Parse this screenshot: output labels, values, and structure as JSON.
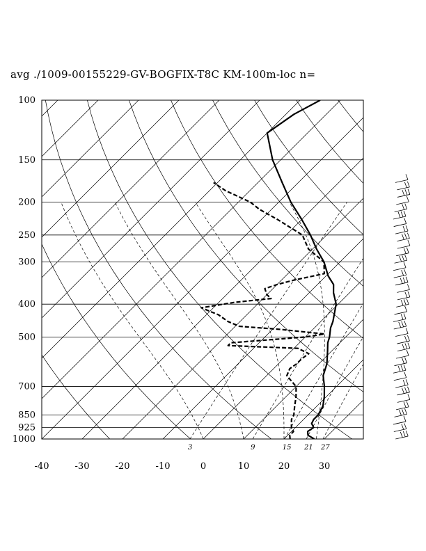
{
  "title": "avg ./1009-00155229-GV-BOGFIX-T8C KM-100m-loc n=",
  "chart_data": {
    "type": "line",
    "chart_kind": "skew-T log-p diagram",
    "y_axis": {
      "scale": "log",
      "reversed": true,
      "range": [
        100,
        1000
      ],
      "ticks": [
        100,
        150,
        200,
        250,
        300,
        400,
        500,
        700,
        850,
        925,
        1000
      ]
    },
    "x_axis": {
      "range": [
        -40,
        40
      ],
      "ticks": [
        -40,
        -30,
        -20,
        -10,
        0,
        10,
        20,
        30
      ]
    },
    "grid": true,
    "mixing_ratio_labels": [
      "3",
      "9",
      "15",
      "21",
      "27"
    ],
    "series": [
      {
        "style": "solid",
        "points": [
          [
            1000,
            27.5
          ],
          [
            975,
            25
          ],
          [
            950,
            24
          ],
          [
            925,
            24.5
          ],
          [
            900,
            23
          ],
          [
            875,
            22.5
          ],
          [
            850,
            22.5
          ],
          [
            800,
            21.5
          ],
          [
            750,
            19.5
          ],
          [
            700,
            17
          ],
          [
            650,
            14
          ],
          [
            600,
            12
          ],
          [
            550,
            9
          ],
          [
            520,
            7
          ],
          [
            500,
            6
          ],
          [
            470,
            4
          ],
          [
            450,
            3
          ],
          [
            400,
            -0.5
          ],
          [
            370,
            -4
          ],
          [
            350,
            -6
          ],
          [
            330,
            -9.5
          ],
          [
            300,
            -14
          ],
          [
            275,
            -19
          ],
          [
            250,
            -24
          ],
          [
            225,
            -30
          ],
          [
            200,
            -37
          ],
          [
            175,
            -44
          ],
          [
            150,
            -52
          ],
          [
            125,
            -60
          ],
          [
            110,
            -58
          ],
          [
            100,
            -55
          ]
        ]
      },
      {
        "style": "dashed",
        "points": [
          [
            1000,
            21.5
          ],
          [
            975,
            20.5
          ],
          [
            950,
            20.5
          ],
          [
            925,
            19
          ],
          [
            900,
            18
          ],
          [
            875,
            17
          ],
          [
            850,
            16.5
          ],
          [
            800,
            14.5
          ],
          [
            750,
            12.5
          ],
          [
            700,
            10
          ],
          [
            650,
            5
          ],
          [
            620,
            4
          ],
          [
            600,
            4.5
          ],
          [
            580,
            4.5
          ],
          [
            560,
            5
          ],
          [
            540,
            1
          ],
          [
            530,
            -17
          ],
          [
            520,
            -17
          ],
          [
            500,
            0
          ],
          [
            490,
            4
          ],
          [
            475,
            -8
          ],
          [
            465,
            -19
          ],
          [
            450,
            -23
          ],
          [
            430,
            -27
          ],
          [
            410,
            -33
          ],
          [
            395,
            -26
          ],
          [
            385,
            -18
          ],
          [
            375,
            -20
          ],
          [
            360,
            -22
          ],
          [
            350,
            -20
          ],
          [
            340,
            -17
          ],
          [
            325,
            -11
          ],
          [
            300,
            -14
          ],
          [
            275,
            -21
          ],
          [
            250,
            -26
          ],
          [
            225,
            -36
          ],
          [
            210,
            -43
          ],
          [
            200,
            -47
          ],
          [
            185,
            -56
          ],
          [
            175,
            -61
          ]
        ]
      }
    ],
    "wind_barbs": {
      "count": 36,
      "pressure_range": [
        175,
        1000
      ]
    }
  }
}
